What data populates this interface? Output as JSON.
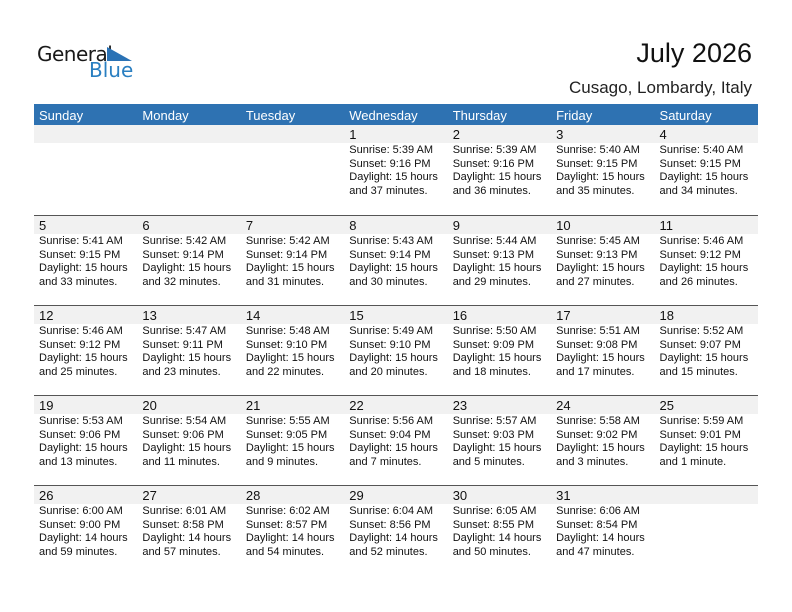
{
  "logo": {
    "line1": "General",
    "line2": "Blue"
  },
  "header": {
    "title": "July 2026",
    "location": "Cusago, Lombardy, Italy"
  },
  "colors": {
    "accent": "#2e72b2",
    "day_strip": "#f1f1f1"
  },
  "weekdays": [
    "Sunday",
    "Monday",
    "Tuesday",
    "Wednesday",
    "Thursday",
    "Friday",
    "Saturday"
  ],
  "weeks": [
    [
      null,
      null,
      null,
      {
        "day": "1",
        "sunrise": "Sunrise: 5:39 AM",
        "sunset": "Sunset: 9:16 PM",
        "daylight": "Daylight: 15 hours",
        "minutes": "and 37 minutes."
      },
      {
        "day": "2",
        "sunrise": "Sunrise: 5:39 AM",
        "sunset": "Sunset: 9:16 PM",
        "daylight": "Daylight: 15 hours",
        "minutes": "and 36 minutes."
      },
      {
        "day": "3",
        "sunrise": "Sunrise: 5:40 AM",
        "sunset": "Sunset: 9:15 PM",
        "daylight": "Daylight: 15 hours",
        "minutes": "and 35 minutes."
      },
      {
        "day": "4",
        "sunrise": "Sunrise: 5:40 AM",
        "sunset": "Sunset: 9:15 PM",
        "daylight": "Daylight: 15 hours",
        "minutes": "and 34 minutes."
      }
    ],
    [
      {
        "day": "5",
        "sunrise": "Sunrise: 5:41 AM",
        "sunset": "Sunset: 9:15 PM",
        "daylight": "Daylight: 15 hours",
        "minutes": "and 33 minutes."
      },
      {
        "day": "6",
        "sunrise": "Sunrise: 5:42 AM",
        "sunset": "Sunset: 9:14 PM",
        "daylight": "Daylight: 15 hours",
        "minutes": "and 32 minutes."
      },
      {
        "day": "7",
        "sunrise": "Sunrise: 5:42 AM",
        "sunset": "Sunset: 9:14 PM",
        "daylight": "Daylight: 15 hours",
        "minutes": "and 31 minutes."
      },
      {
        "day": "8",
        "sunrise": "Sunrise: 5:43 AM",
        "sunset": "Sunset: 9:14 PM",
        "daylight": "Daylight: 15 hours",
        "minutes": "and 30 minutes."
      },
      {
        "day": "9",
        "sunrise": "Sunrise: 5:44 AM",
        "sunset": "Sunset: 9:13 PM",
        "daylight": "Daylight: 15 hours",
        "minutes": "and 29 minutes."
      },
      {
        "day": "10",
        "sunrise": "Sunrise: 5:45 AM",
        "sunset": "Sunset: 9:13 PM",
        "daylight": "Daylight: 15 hours",
        "minutes": "and 27 minutes."
      },
      {
        "day": "11",
        "sunrise": "Sunrise: 5:46 AM",
        "sunset": "Sunset: 9:12 PM",
        "daylight": "Daylight: 15 hours",
        "minutes": "and 26 minutes."
      }
    ],
    [
      {
        "day": "12",
        "sunrise": "Sunrise: 5:46 AM",
        "sunset": "Sunset: 9:12 PM",
        "daylight": "Daylight: 15 hours",
        "minutes": "and 25 minutes."
      },
      {
        "day": "13",
        "sunrise": "Sunrise: 5:47 AM",
        "sunset": "Sunset: 9:11 PM",
        "daylight": "Daylight: 15 hours",
        "minutes": "and 23 minutes."
      },
      {
        "day": "14",
        "sunrise": "Sunrise: 5:48 AM",
        "sunset": "Sunset: 9:10 PM",
        "daylight": "Daylight: 15 hours",
        "minutes": "and 22 minutes."
      },
      {
        "day": "15",
        "sunrise": "Sunrise: 5:49 AM",
        "sunset": "Sunset: 9:10 PM",
        "daylight": "Daylight: 15 hours",
        "minutes": "and 20 minutes."
      },
      {
        "day": "16",
        "sunrise": "Sunrise: 5:50 AM",
        "sunset": "Sunset: 9:09 PM",
        "daylight": "Daylight: 15 hours",
        "minutes": "and 18 minutes."
      },
      {
        "day": "17",
        "sunrise": "Sunrise: 5:51 AM",
        "sunset": "Sunset: 9:08 PM",
        "daylight": "Daylight: 15 hours",
        "minutes": "and 17 minutes."
      },
      {
        "day": "18",
        "sunrise": "Sunrise: 5:52 AM",
        "sunset": "Sunset: 9:07 PM",
        "daylight": "Daylight: 15 hours",
        "minutes": "and 15 minutes."
      }
    ],
    [
      {
        "day": "19",
        "sunrise": "Sunrise: 5:53 AM",
        "sunset": "Sunset: 9:06 PM",
        "daylight": "Daylight: 15 hours",
        "minutes": "and 13 minutes."
      },
      {
        "day": "20",
        "sunrise": "Sunrise: 5:54 AM",
        "sunset": "Sunset: 9:06 PM",
        "daylight": "Daylight: 15 hours",
        "minutes": "and 11 minutes."
      },
      {
        "day": "21",
        "sunrise": "Sunrise: 5:55 AM",
        "sunset": "Sunset: 9:05 PM",
        "daylight": "Daylight: 15 hours",
        "minutes": "and 9 minutes."
      },
      {
        "day": "22",
        "sunrise": "Sunrise: 5:56 AM",
        "sunset": "Sunset: 9:04 PM",
        "daylight": "Daylight: 15 hours",
        "minutes": "and 7 minutes."
      },
      {
        "day": "23",
        "sunrise": "Sunrise: 5:57 AM",
        "sunset": "Sunset: 9:03 PM",
        "daylight": "Daylight: 15 hours",
        "minutes": "and 5 minutes."
      },
      {
        "day": "24",
        "sunrise": "Sunrise: 5:58 AM",
        "sunset": "Sunset: 9:02 PM",
        "daylight": "Daylight: 15 hours",
        "minutes": "and 3 minutes."
      },
      {
        "day": "25",
        "sunrise": "Sunrise: 5:59 AM",
        "sunset": "Sunset: 9:01 PM",
        "daylight": "Daylight: 15 hours",
        "minutes": "and 1 minute."
      }
    ],
    [
      {
        "day": "26",
        "sunrise": "Sunrise: 6:00 AM",
        "sunset": "Sunset: 9:00 PM",
        "daylight": "Daylight: 14 hours",
        "minutes": "and 59 minutes."
      },
      {
        "day": "27",
        "sunrise": "Sunrise: 6:01 AM",
        "sunset": "Sunset: 8:58 PM",
        "daylight": "Daylight: 14 hours",
        "minutes": "and 57 minutes."
      },
      {
        "day": "28",
        "sunrise": "Sunrise: 6:02 AM",
        "sunset": "Sunset: 8:57 PM",
        "daylight": "Daylight: 14 hours",
        "minutes": "and 54 minutes."
      },
      {
        "day": "29",
        "sunrise": "Sunrise: 6:04 AM",
        "sunset": "Sunset: 8:56 PM",
        "daylight": "Daylight: 14 hours",
        "minutes": "and 52 minutes."
      },
      {
        "day": "30",
        "sunrise": "Sunrise: 6:05 AM",
        "sunset": "Sunset: 8:55 PM",
        "daylight": "Daylight: 14 hours",
        "minutes": "and 50 minutes."
      },
      {
        "day": "31",
        "sunrise": "Sunrise: 6:06 AM",
        "sunset": "Sunset: 8:54 PM",
        "daylight": "Daylight: 14 hours",
        "minutes": "and 47 minutes."
      },
      null
    ]
  ]
}
